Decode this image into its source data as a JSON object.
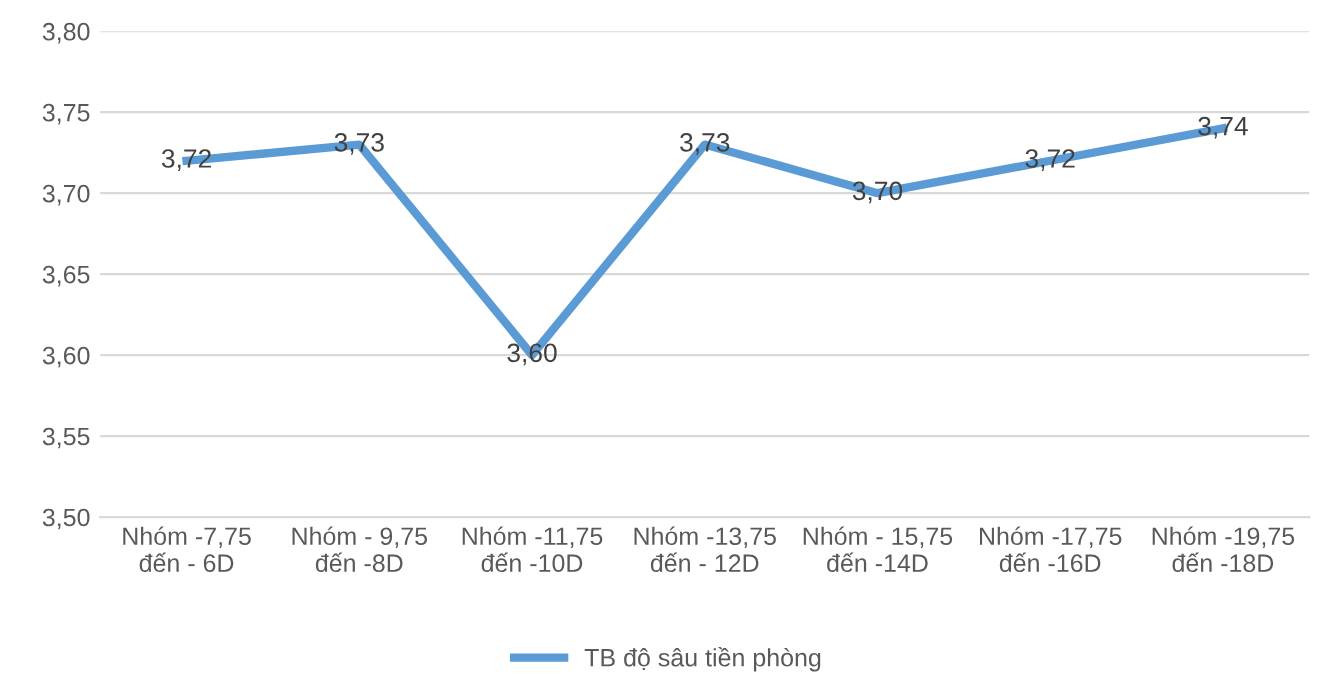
{
  "chart_data": {
    "type": "line",
    "categories": [
      "Nhóm -7,75\nđến - 6D",
      "Nhóm - 9,75\nđến -8D",
      "Nhóm -11,75\nđến -10D",
      "Nhóm -13,75\nđến - 12D",
      "Nhóm - 15,75\nđến -14D",
      "Nhóm -17,75\nđến -16D",
      "Nhóm -19,75\nđến -18D"
    ],
    "series": [
      {
        "name": "TB độ sâu tiền phòng",
        "color": "#5b9bd5",
        "values": [
          3.72,
          3.73,
          3.6,
          3.73,
          3.7,
          3.72,
          3.74
        ],
        "value_labels": [
          "3,72",
          "3,73",
          "3,60",
          "3,73",
          "3,70",
          "3,72",
          "3,74"
        ]
      }
    ],
    "ylim": [
      3.5,
      3.8
    ],
    "yticks": [
      {
        "value": 3.5,
        "label": "3,50"
      },
      {
        "value": 3.55,
        "label": "3,55"
      },
      {
        "value": 3.6,
        "label": "3,60"
      },
      {
        "value": 3.65,
        "label": "3,65"
      },
      {
        "value": 3.7,
        "label": "3,70"
      },
      {
        "value": 3.75,
        "label": "3,75"
      },
      {
        "value": 3.8,
        "label": "3,80"
      }
    ],
    "grid": "y",
    "legend": "bottom",
    "marker": "none",
    "line_style": "solid"
  }
}
